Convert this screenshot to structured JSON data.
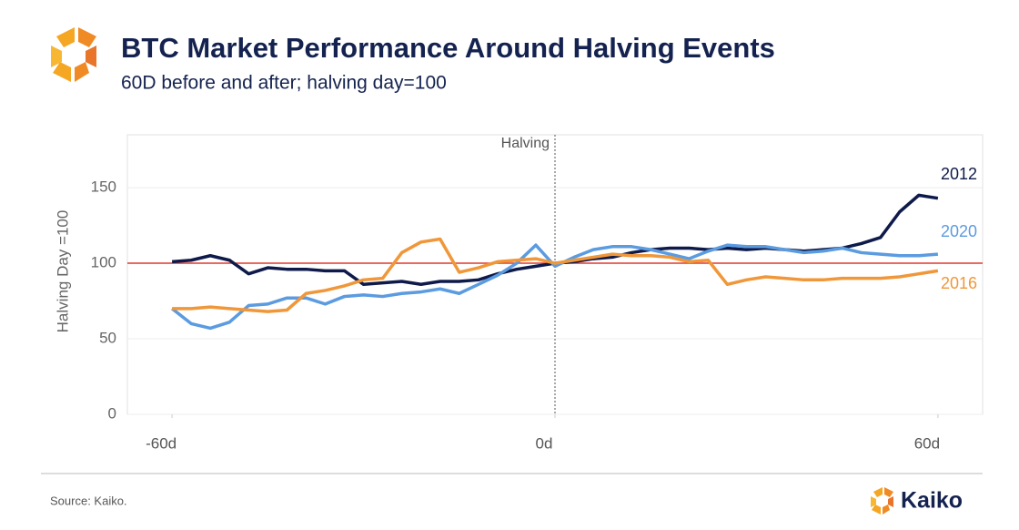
{
  "header": {
    "title": "BTC Market Performance Around Halving Events",
    "subtitle": "60D before and after; halving day=100"
  },
  "chart_data": {
    "type": "line",
    "y_label": "Halving Day =100",
    "annotation": "Halving",
    "x": [
      -60,
      -57,
      -54,
      -51,
      -48,
      -45,
      -42,
      -39,
      -36,
      -33,
      -30,
      -27,
      -24,
      -21,
      -18,
      -15,
      -12,
      -9,
      -6,
      -3,
      0,
      3,
      6,
      9,
      12,
      15,
      18,
      21,
      24,
      27,
      30,
      33,
      36,
      39,
      42,
      45,
      48,
      51,
      54,
      57,
      60
    ],
    "series": [
      {
        "name": "2012",
        "color": "#0e1a4a",
        "values": [
          101,
          102,
          105,
          102,
          93,
          97,
          96,
          96,
          95,
          95,
          86,
          87,
          88,
          86,
          88,
          88,
          89,
          93,
          96,
          98,
          100,
          101,
          103,
          104,
          107,
          109,
          110,
          110,
          109,
          110,
          109,
          110,
          109,
          108,
          109,
          110,
          113,
          117,
          134,
          145,
          143
        ]
      },
      {
        "name": "2020",
        "color": "#5b9be0",
        "values": [
          70,
          60,
          57,
          61,
          72,
          73,
          77,
          77,
          73,
          78,
          79,
          78,
          80,
          81,
          83,
          80,
          86,
          92,
          100,
          112,
          98,
          104,
          109,
          111,
          111,
          109,
          106,
          103,
          108,
          112,
          111,
          111,
          109,
          107,
          108,
          110,
          107,
          106,
          105,
          105,
          106
        ]
      },
      {
        "name": "2016",
        "color": "#f0973a",
        "values": [
          70,
          70,
          71,
          70,
          69,
          68,
          69,
          80,
          82,
          85,
          89,
          90,
          107,
          114,
          116,
          94,
          97,
          101,
          102,
          103,
          100,
          102,
          104,
          106,
          105,
          105,
          104,
          101,
          102,
          86,
          89,
          91,
          90,
          89,
          89,
          90,
          90,
          90,
          91,
          93,
          95
        ]
      }
    ],
    "xlim": [
      -67,
      67
    ],
    "xticks": [
      {
        "value": -60,
        "label": "-60d"
      },
      {
        "value": 0,
        "label": "0d"
      },
      {
        "value": 60,
        "label": "60d"
      }
    ],
    "ylim": [
      0,
      185
    ],
    "yticks": [
      0,
      50,
      100,
      150
    ],
    "grid": true,
    "reference_line": {
      "value": 100,
      "color": "#e03a2e"
    },
    "halving_line": 0
  },
  "footer": {
    "source": "Source: Kaiko.",
    "brand": "Kaiko"
  }
}
